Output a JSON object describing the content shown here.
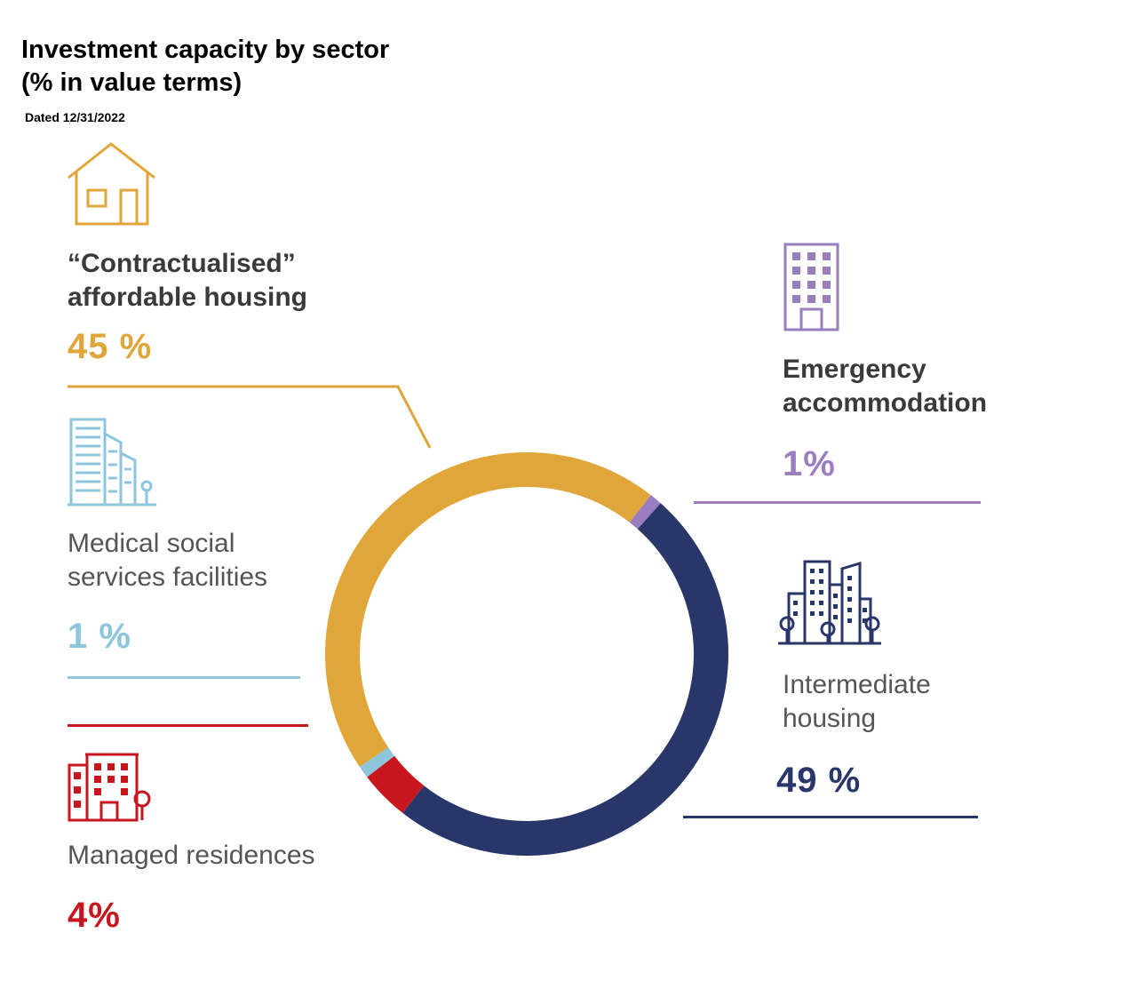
{
  "title_line1": "Investment capacity by sector",
  "title_line2": "(% in value terms)",
  "subtitle": "Dated 12/31/2022",
  "chart_data": {
    "type": "pie",
    "variant": "donut",
    "start": "top, clockwise",
    "slices": [
      {
        "label": "Emergency accommodation",
        "value": 1,
        "display": "1%",
        "color": "#9b7ec0"
      },
      {
        "label": "Intermediate housing",
        "value": 49,
        "display": "49 %",
        "color": "#283669"
      },
      {
        "label": "Managed residences",
        "value": 4,
        "display": "4%",
        "color": "#c7161e"
      },
      {
        "label": "Medical social services facilities",
        "value": 1,
        "display": "1%",
        "color": "#8cc5dc"
      },
      {
        "label": "“Contractualised” affordable housing",
        "value": 45,
        "display": "45%",
        "color": "#e0a63a"
      }
    ]
  },
  "labels": {
    "affordable": {
      "line1": "“Contractualised”",
      "line2": "affordable housing",
      "pct": "45 %"
    },
    "emergency": {
      "line1": "Emergency",
      "line2": "accommodation",
      "pct": "1%"
    },
    "medical": {
      "line1": "Medical social",
      "line2": "services facilities",
      "pct": "1 %"
    },
    "intermediate": {
      "line1": "Intermediate",
      "line2": "housing",
      "pct": "49 %"
    },
    "managed": {
      "line1": "Managed residences",
      "pct": "4%"
    }
  },
  "icons": {
    "affordable": "house-icon",
    "emergency": "office-building-icon",
    "medical": "tall-buildings-icon",
    "intermediate": "city-buildings-icon",
    "managed": "residence-building-icon"
  }
}
